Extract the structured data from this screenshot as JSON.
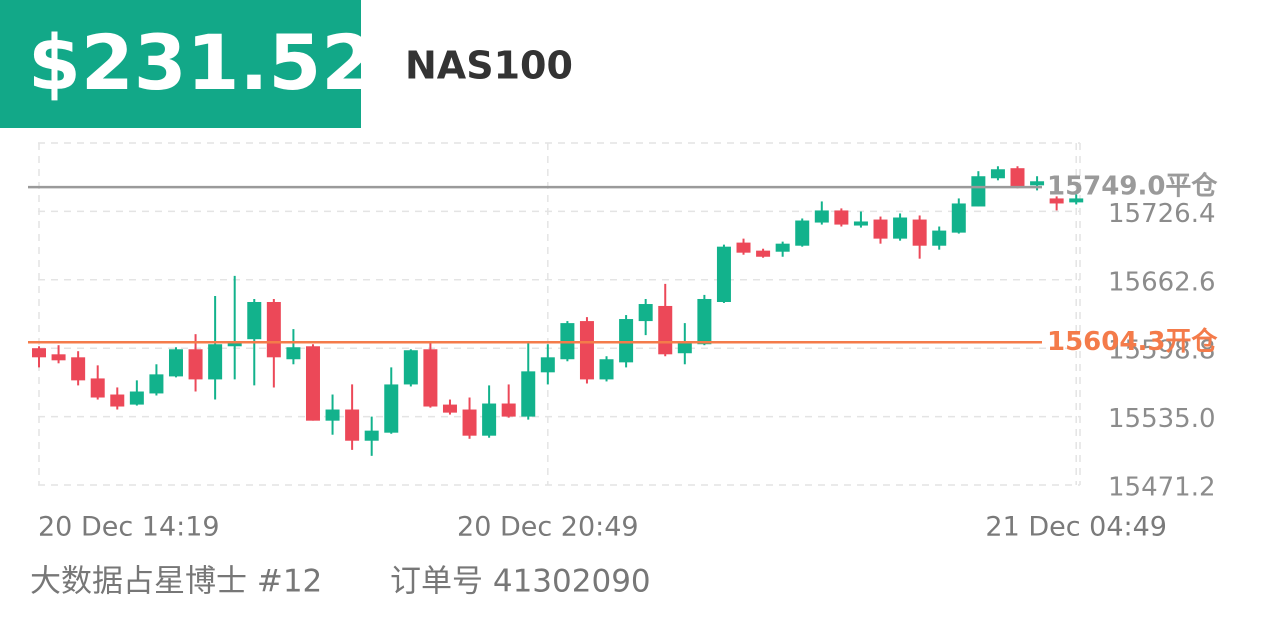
{
  "header": {
    "price": "$231.52",
    "symbol": "NAS100"
  },
  "chart_data": {
    "type": "candlestick",
    "categories": [
      "20 Dec  14:19",
      null,
      null,
      null,
      null,
      null,
      null,
      null,
      null,
      null,
      null,
      null,
      null,
      null,
      null,
      null,
      null,
      null,
      null,
      null,
      null,
      null,
      null,
      null,
      null,
      null,
      "20 Dec  20:49",
      null,
      null,
      null,
      null,
      null,
      null,
      null,
      null,
      null,
      null,
      null,
      null,
      null,
      null,
      null,
      null,
      null,
      null,
      null,
      null,
      null,
      null,
      null,
      null,
      null,
      null,
      "21 Dec  04:49"
    ],
    "open": [
      15598.8,
      15593.1,
      15590.3,
      15570.6,
      15555.6,
      15546.2,
      15556.6,
      15572.5,
      15597.8,
      15569.7,
      15600.6,
      15607.2,
      15641.9,
      15588.5,
      15600.6,
      15531.2,
      15541.6,
      15512.5,
      15520.0,
      15565.0,
      15597.8,
      15546.2,
      15541.6,
      15517.2,
      15547.2,
      15535.0,
      15576.3,
      15588.5,
      15624.1,
      15569.7,
      15585.6,
      15624.1,
      15638.2,
      15594.1,
      15602.5,
      15641.9,
      15697.3,
      15689.8,
      15688.8,
      15694.4,
      15716.0,
      15727.3,
      15713.2,
      15718.8,
      15701.0,
      15718.8,
      15694.4,
      15706.6,
      15731.0,
      15757.3,
      15766.7,
      15750.7,
      15738.5,
      15734.8
    ],
    "high": [
      15600.6,
      15601.6,
      15596.0,
      15582.8,
      15562.2,
      15568.8,
      15583.8,
      15599.7,
      15611.9,
      15647.5,
      15666.3,
      15644.7,
      15644.7,
      15616.6,
      15602.5,
      15555.6,
      15565.0,
      15535.0,
      15580.9,
      15597.8,
      15605.3,
      15550.9,
      15552.8,
      15564.1,
      15565.0,
      15604.4,
      15602.5,
      15624.1,
      15627.8,
      15591.3,
      15629.7,
      15644.7,
      15658.8,
      15622.2,
      15648.5,
      15695.4,
      15701.0,
      15691.6,
      15698.2,
      15719.8,
      15735.7,
      15729.2,
      15726.3,
      15721.6,
      15724.5,
      15722.6,
      15712.3,
      15738.5,
      15763.9,
      15768.5,
      15768.5,
      15759.2,
      15740.4,
      15742.3
    ],
    "low": [
      15580.9,
      15584.7,
      15564.1,
      15550.9,
      15541.6,
      15545.3,
      15554.7,
      15571.6,
      15558.4,
      15550.9,
      15569.7,
      15564.1,
      15562.2,
      15583.8,
      15531.2,
      15518.1,
      15504.0,
      15498.4,
      15519.0,
      15563.1,
      15543.4,
      15536.9,
      15514.3,
      15515.3,
      15534.0,
      15532.2,
      15565.0,
      15586.6,
      15565.9,
      15567.8,
      15580.9,
      15611.0,
      15591.3,
      15583.8,
      15601.6,
      15641.0,
      15686.0,
      15683.2,
      15684.1,
      15693.5,
      15714.1,
      15712.3,
      15711.3,
      15696.3,
      15699.1,
      15682.3,
      15690.7,
      15705.7,
      15731.0,
      15755.4,
      15747.9,
      15746.0,
      15727.3,
      15732.9
    ],
    "close": [
      15590.3,
      15587.5,
      15568.8,
      15552.8,
      15544.4,
      15558.4,
      15574.4,
      15597.8,
      15569.7,
      15602.5,
      15605.3,
      15641.9,
      15590.3,
      15599.7,
      15531.2,
      15541.6,
      15512.5,
      15521.9,
      15565.0,
      15596.9,
      15544.4,
      15538.7,
      15517.2,
      15547.2,
      15535.0,
      15577.2,
      15590.3,
      15622.2,
      15569.7,
      15588.5,
      15626.0,
      15640.0,
      15593.1,
      15604.4,
      15644.7,
      15693.5,
      15687.9,
      15684.1,
      15696.3,
      15717.9,
      15727.3,
      15714.1,
      15717.0,
      15701.0,
      15720.7,
      15694.4,
      15708.5,
      15733.8,
      15759.2,
      15765.7,
      15749.8,
      15754.5,
      15733.8,
      15738.5
    ],
    "up_color": "#12b28c",
    "down_color": "#ec4858",
    "ylim": [
      15471.2,
      15790.2
    ],
    "yticks": [
      15471.2,
      {
        "value": 15535,
        "label": "15535.0"
      },
      15598.8,
      15662.6,
      15726.4
    ],
    "grid": true,
    "hlines": [
      {
        "value": 15749,
        "label": "15749.0平仓",
        "color": "#9a9a9a"
      },
      {
        "value": 15604.3,
        "label": "15604.3开仓",
        "color": "#f47b4a"
      }
    ]
  },
  "footer": {
    "account": "大数据占星博士 #12",
    "order": "订单号 41302090"
  }
}
